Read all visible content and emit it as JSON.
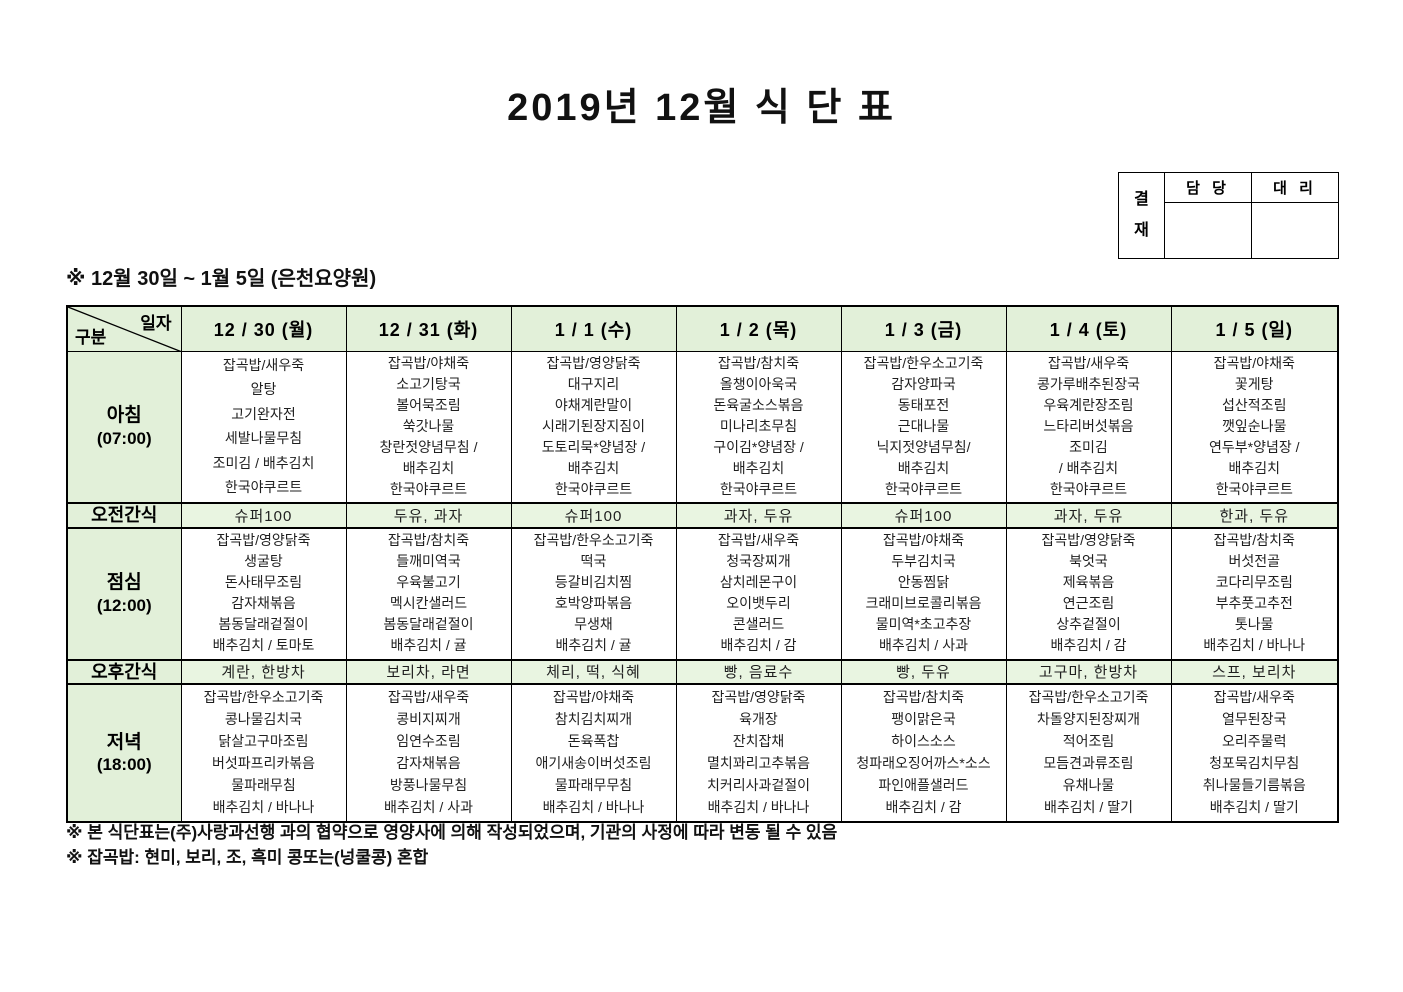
{
  "title": "2019년 12월 식 단 표",
  "approval": {
    "label": "결재",
    "columns": [
      "담 당",
      "대 리"
    ]
  },
  "subtitle": "※ 12월 30일 ~ 1월 5일 (은천요양원)",
  "table": {
    "corner": {
      "top": "일자",
      "bottom": "구분"
    },
    "days": [
      "12 / 30 (월)",
      "12 / 31 (화)",
      "1 / 1 (수)",
      "1 / 2 (목)",
      "1 / 3 (금)",
      "1 / 4 (토)",
      "1 / 5 (일)"
    ],
    "rows": [
      {
        "key": "breakfast",
        "type": "meal",
        "label": "아침",
        "time": "(07:00)",
        "cells": [
          [
            "잡곡밥/새우죽",
            "알탕",
            "고기완자전",
            "세발나물무침",
            "조미김 / 배추김치",
            "한국야쿠르트"
          ],
          [
            "잡곡밥/야채죽",
            "소고기탕국",
            "볼어묵조림",
            "쑥갓나물",
            "창란젓양념무침 /",
            "배추김치",
            "한국야쿠르트"
          ],
          [
            "잡곡밥/영양닭죽",
            "대구지리",
            "야채계란말이",
            "시래기된장지짐이",
            "도토리묵*양념장 /",
            "배추김치",
            "한국야쿠르트"
          ],
          [
            "잡곡밥/참치죽",
            "올챙이아욱국",
            "돈육굴소스볶음",
            "미나리초무침",
            "구이김*양념장 /",
            "배추김치",
            "한국야쿠르트"
          ],
          [
            "잡곡밥/한우소고기죽",
            "감자양파국",
            "동태포전",
            "근대나물",
            "닉지젓양념무침/",
            "배추김치",
            "한국야쿠르트"
          ],
          [
            "잡곡밥/새우죽",
            "콩가루배추된장국",
            "우육계란장조림",
            "느타리버섯볶음",
            "조미김",
            "/ 배추김치",
            "한국야쿠르트"
          ],
          [
            "잡곡밥/야채죽",
            "꽃게탕",
            "섭산적조림",
            "깻잎순나물",
            "연두부*양념장 /",
            "배추김치",
            "한국야쿠르트"
          ]
        ]
      },
      {
        "key": "morning-snack",
        "type": "snack",
        "label": "오전간식",
        "cells": [
          "슈퍼100",
          "두유, 과자",
          "슈퍼100",
          "과자, 두유",
          "슈퍼100",
          "과자, 두유",
          "한과, 두유"
        ]
      },
      {
        "key": "lunch",
        "type": "meal",
        "label": "점심",
        "time": "(12:00)",
        "cells": [
          [
            "잡곡밥/영양닭죽",
            "생굴탕",
            "돈사태무조림",
            "감자채볶음",
            "봄동달래겉절이",
            "배추김치 / 토마토"
          ],
          [
            "잡곡밥/참치죽",
            "들깨미역국",
            "우육불고기",
            "멕시칸샐러드",
            "봄동달래겉절이",
            "배추김치 / 귤"
          ],
          [
            "잡곡밥/한우소고기죽",
            "떡국",
            "등갈비김치찜",
            "호박양파볶음",
            "무생채",
            "배추김치 / 귤"
          ],
          [
            "잡곡밥/새우죽",
            "청국장찌개",
            "삼치레몬구이",
            "오이뱃두리",
            "콘샐러드",
            "배추김치 / 감"
          ],
          [
            "잡곡밥/야채죽",
            "두부김치국",
            "안동찜닭",
            "크래미브로콜리볶음",
            "물미역*초고추장",
            "배추김치 / 사과"
          ],
          [
            "잡곡밥/영양닭죽",
            "북엇국",
            "제육볶음",
            "연근조림",
            "상추겉절이",
            "배추김치 / 감"
          ],
          [
            "잡곡밥/참치죽",
            "버섯전골",
            "코다리무조림",
            "부추풋고추전",
            "톳나물",
            "배추김치 / 바나나"
          ]
        ]
      },
      {
        "key": "afternoon-snack",
        "type": "snack",
        "label": "오후간식",
        "cells": [
          "계란, 한방차",
          "보리차, 라면",
          "체리, 떡, 식혜",
          "빵, 음료수",
          "빵, 두유",
          "고구마, 한방차",
          "스프, 보리차"
        ]
      },
      {
        "key": "dinner",
        "type": "meal",
        "label": "저녁",
        "time": "(18:00)",
        "cells": [
          [
            "잡곡밥/한우소고기죽",
            "콩나물김치국",
            "닭살고구마조림",
            "버섯파프리카볶음",
            "물파래무침",
            "배추김치 / 바나나"
          ],
          [
            "잡곡밥/새우죽",
            "콩비지찌개",
            "임연수조림",
            "감자채볶음",
            "방풍나물무침",
            "배추김치 / 사과"
          ],
          [
            "잡곡밥/야채죽",
            "참치김치찌개",
            "돈육폭찹",
            "애기새송이버섯조림",
            "물파래무무침",
            "배추김치 / 바나나"
          ],
          [
            "잡곡밥/영양닭죽",
            "육개장",
            "잔치잡채",
            "멸치꽈리고추볶음",
            "치커리사과겉절이",
            "배추김치 / 바나나"
          ],
          [
            "잡곡밥/참치죽",
            "팽이맑은국",
            "하이스소스",
            "청파래오징어까스*소스",
            "파인애플샐러드",
            "배추김치 / 감"
          ],
          [
            "잡곡밥/한우소고기죽",
            "차돌양지된장찌개",
            "적어조림",
            "모듬견과류조림",
            "유채나물",
            "배추김치 / 딸기"
          ],
          [
            "잡곡밥/새우죽",
            "열무된장국",
            "오리주물럭",
            "청포묵김치무침",
            "취나물들기름볶음",
            "배추김치 / 딸기"
          ]
        ]
      }
    ]
  },
  "notes": [
    "※ 본 식단표는(주)사랑과선행 과의 협약으로 영양사에 의해 작성되었으며, 기관의 사정에 따라 변동 될 수 있음",
    "※ 잡곡밥: 현미, 보리, 조, 흑미 콩또는(넝쿨콩) 혼합"
  ]
}
